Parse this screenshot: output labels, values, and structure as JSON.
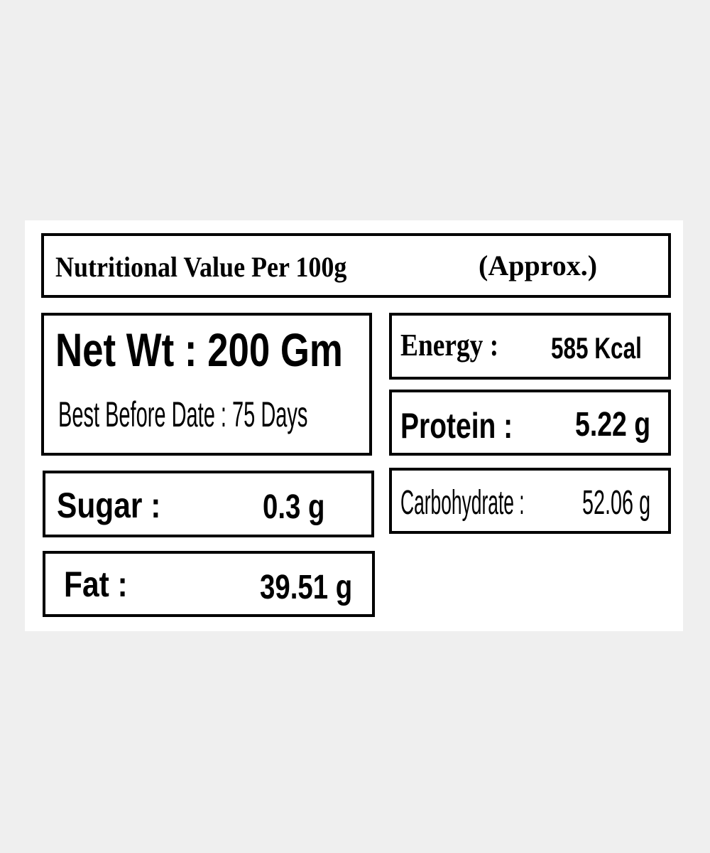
{
  "header": {
    "title": "Nutritional Value Per 100g",
    "note": "(Approx.)"
  },
  "net_weight": "Net Wt : 200 Gm",
  "best_before": "Best Before Date : 75 Days",
  "items": [
    {
      "label": "Energy :",
      "value": "585 Kcal"
    },
    {
      "label": "Protein :",
      "value": "5.22 g"
    },
    {
      "label": "Carbohydrate :",
      "value": "52.06 g"
    },
    {
      "label": "Sugar :",
      "value": "0.3 g"
    },
    {
      "label": "Fat :",
      "value": "39.51 g"
    }
  ]
}
